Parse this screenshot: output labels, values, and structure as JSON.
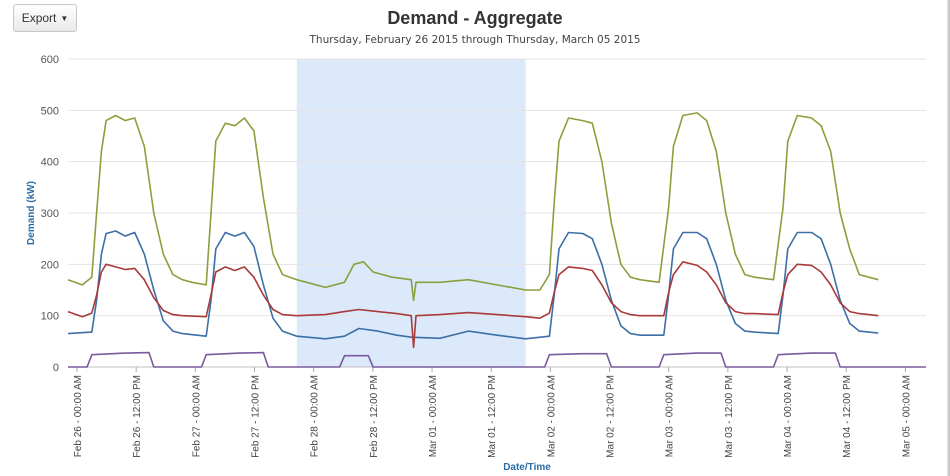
{
  "toolbar": {
    "export_label": "Export",
    "export_icon": "caret-down-icon"
  },
  "chart_data": {
    "type": "line",
    "title": "Demand - Aggregate",
    "subtitle": "Thursday, February 26 2015 through Thursday, March 05 2015",
    "xlabel": "Date/Time",
    "ylabel": "Demand (kW)",
    "ylim": [
      0,
      600
    ],
    "yticks": [
      0,
      100,
      200,
      300,
      400,
      500,
      600
    ],
    "xlim": [
      "2015-02-26 00:00",
      "2015-03-05 12:00"
    ],
    "xticks": [
      "Feb 26 - 00:00 AM",
      "Feb 26 - 12:00 PM",
      "Feb 27 - 00:00 AM",
      "Feb 27 - 12:00 PM",
      "Feb 28 - 00:00 AM",
      "Feb 28 - 12:00 PM",
      "Mar 01 - 00:00 AM",
      "Mar 01 - 12:00 PM",
      "Mar 02 - 00:00 AM",
      "Mar 02 - 12:00 PM",
      "Mar 03 - 00:00 AM",
      "Mar 03 - 12:00 PM",
      "Mar 04 - 00:00 AM",
      "Mar 04 - 12:00 PM",
      "Mar 05 - 00:00 AM"
    ],
    "grid": "horizontal",
    "legend": "none",
    "weekend_band": {
      "from": "2015-02-28 00:00",
      "to": "2015-03-02 00:00",
      "color": "#dbe9fb"
    },
    "series": [
      {
        "color": "#8aa03c",
        "points": [
          [
            "2015-02-26 00:00",
            170
          ],
          [
            "2015-02-26 03:00",
            160
          ],
          [
            "2015-02-26 05:00",
            175
          ],
          [
            "2015-02-26 06:00",
            300
          ],
          [
            "2015-02-26 07:00",
            420
          ],
          [
            "2015-02-26 08:00",
            480
          ],
          [
            "2015-02-26 10:00",
            490
          ],
          [
            "2015-02-26 12:00",
            480
          ],
          [
            "2015-02-26 14:00",
            485
          ],
          [
            "2015-02-26 16:00",
            430
          ],
          [
            "2015-02-26 18:00",
            300
          ],
          [
            "2015-02-26 20:00",
            220
          ],
          [
            "2015-02-26 22:00",
            180
          ],
          [
            "2015-02-27 00:00",
            170
          ],
          [
            "2015-02-27 02:00",
            165
          ],
          [
            "2015-02-27 05:00",
            160
          ],
          [
            "2015-02-27 06:00",
            300
          ],
          [
            "2015-02-27 07:00",
            440
          ],
          [
            "2015-02-27 09:00",
            475
          ],
          [
            "2015-02-27 11:00",
            470
          ],
          [
            "2015-02-27 13:00",
            485
          ],
          [
            "2015-02-27 15:00",
            460
          ],
          [
            "2015-02-27 17:00",
            330
          ],
          [
            "2015-02-27 19:00",
            220
          ],
          [
            "2015-02-27 21:00",
            180
          ],
          [
            "2015-02-28 00:00",
            170
          ],
          [
            "2015-02-28 06:00",
            155
          ],
          [
            "2015-02-28 10:00",
            165
          ],
          [
            "2015-02-28 12:00",
            200
          ],
          [
            "2015-02-28 14:00",
            205
          ],
          [
            "2015-02-28 16:00",
            185
          ],
          [
            "2015-02-28 20:00",
            175
          ],
          [
            "2015-03-01 00:00",
            170
          ],
          [
            "2015-03-01 00:30",
            130
          ],
          [
            "2015-03-01 01:00",
            165
          ],
          [
            "2015-03-01 06:00",
            165
          ],
          [
            "2015-03-01 12:00",
            170
          ],
          [
            "2015-03-01 18:00",
            160
          ],
          [
            "2015-03-02 00:00",
            150
          ],
          [
            "2015-03-02 03:00",
            150
          ],
          [
            "2015-03-02 05:00",
            180
          ],
          [
            "2015-03-02 06:00",
            320
          ],
          [
            "2015-03-02 07:00",
            440
          ],
          [
            "2015-03-02 09:00",
            485
          ],
          [
            "2015-03-02 12:00",
            480
          ],
          [
            "2015-03-02 14:00",
            475
          ],
          [
            "2015-03-02 16:00",
            400
          ],
          [
            "2015-03-02 18:00",
            280
          ],
          [
            "2015-03-02 20:00",
            200
          ],
          [
            "2015-03-02 22:00",
            175
          ],
          [
            "2015-03-03 00:00",
            170
          ],
          [
            "2015-03-03 04:00",
            165
          ],
          [
            "2015-03-03 06:00",
            310
          ],
          [
            "2015-03-03 07:00",
            430
          ],
          [
            "2015-03-03 09:00",
            490
          ],
          [
            "2015-03-03 12:00",
            495
          ],
          [
            "2015-03-03 14:00",
            480
          ],
          [
            "2015-03-03 16:00",
            420
          ],
          [
            "2015-03-03 18:00",
            300
          ],
          [
            "2015-03-03 20:00",
            220
          ],
          [
            "2015-03-03 22:00",
            180
          ],
          [
            "2015-03-04 00:00",
            175
          ],
          [
            "2015-03-04 04:00",
            170
          ],
          [
            "2015-03-04 06:00",
            310
          ],
          [
            "2015-03-04 07:00",
            440
          ],
          [
            "2015-03-04 09:00",
            490
          ],
          [
            "2015-03-04 12:00",
            485
          ],
          [
            "2015-03-04 14:00",
            470
          ],
          [
            "2015-03-04 16:00",
            420
          ],
          [
            "2015-03-04 18:00",
            300
          ],
          [
            "2015-03-04 20:00",
            230
          ],
          [
            "2015-03-04 22:00",
            180
          ],
          [
            "2015-03-05 00:00",
            175
          ],
          [
            "2015-03-05 02:00",
            170
          ]
        ]
      },
      {
        "color": "#3c6fa6",
        "points": [
          [
            "2015-02-26 00:00",
            65
          ],
          [
            "2015-02-26 05:00",
            68
          ],
          [
            "2015-02-26 06:00",
            130
          ],
          [
            "2015-02-26 07:00",
            220
          ],
          [
            "2015-02-26 08:00",
            260
          ],
          [
            "2015-02-26 10:00",
            265
          ],
          [
            "2015-02-26 12:00",
            255
          ],
          [
            "2015-02-26 14:00",
            262
          ],
          [
            "2015-02-26 16:00",
            220
          ],
          [
            "2015-02-26 18:00",
            150
          ],
          [
            "2015-02-26 20:00",
            90
          ],
          [
            "2015-02-26 22:00",
            70
          ],
          [
            "2015-02-27 00:00",
            65
          ],
          [
            "2015-02-27 05:00",
            60
          ],
          [
            "2015-02-27 06:00",
            130
          ],
          [
            "2015-02-27 07:00",
            230
          ],
          [
            "2015-02-27 09:00",
            262
          ],
          [
            "2015-02-27 11:00",
            255
          ],
          [
            "2015-02-27 13:00",
            262
          ],
          [
            "2015-02-27 15:00",
            235
          ],
          [
            "2015-02-27 17:00",
            160
          ],
          [
            "2015-02-27 19:00",
            95
          ],
          [
            "2015-02-27 21:00",
            70
          ],
          [
            "2015-02-28 00:00",
            60
          ],
          [
            "2015-02-28 06:00",
            55
          ],
          [
            "2015-02-28 10:00",
            60
          ],
          [
            "2015-02-28 13:00",
            75
          ],
          [
            "2015-02-28 17:00",
            70
          ],
          [
            "2015-02-28 21:00",
            62
          ],
          [
            "2015-03-01 00:00",
            58
          ],
          [
            "2015-03-01 06:00",
            56
          ],
          [
            "2015-03-01 12:00",
            70
          ],
          [
            "2015-03-01 18:00",
            62
          ],
          [
            "2015-03-02 00:00",
            55
          ],
          [
            "2015-03-02 05:00",
            60
          ],
          [
            "2015-03-02 06:00",
            140
          ],
          [
            "2015-03-02 07:00",
            230
          ],
          [
            "2015-03-02 09:00",
            262
          ],
          [
            "2015-03-02 12:00",
            260
          ],
          [
            "2015-03-02 14:00",
            250
          ],
          [
            "2015-03-02 16:00",
            200
          ],
          [
            "2015-03-02 18:00",
            130
          ],
          [
            "2015-03-02 20:00",
            80
          ],
          [
            "2015-03-02 22:00",
            65
          ],
          [
            "2015-03-03 00:00",
            62
          ],
          [
            "2015-03-03 05:00",
            62
          ],
          [
            "2015-03-03 06:00",
            140
          ],
          [
            "2015-03-03 07:00",
            230
          ],
          [
            "2015-03-03 09:00",
            262
          ],
          [
            "2015-03-03 12:00",
            262
          ],
          [
            "2015-03-03 14:00",
            250
          ],
          [
            "2015-03-03 16:00",
            200
          ],
          [
            "2015-03-03 18:00",
            130
          ],
          [
            "2015-03-03 20:00",
            85
          ],
          [
            "2015-03-03 22:00",
            70
          ],
          [
            "2015-03-04 00:00",
            68
          ],
          [
            "2015-03-04 05:00",
            65
          ],
          [
            "2015-03-04 06:00",
            140
          ],
          [
            "2015-03-04 07:00",
            230
          ],
          [
            "2015-03-04 09:00",
            262
          ],
          [
            "2015-03-04 12:00",
            262
          ],
          [
            "2015-03-04 14:00",
            250
          ],
          [
            "2015-03-04 16:00",
            200
          ],
          [
            "2015-03-04 18:00",
            130
          ],
          [
            "2015-03-04 20:00",
            85
          ],
          [
            "2015-03-04 22:00",
            70
          ],
          [
            "2015-03-05 00:00",
            68
          ],
          [
            "2015-03-05 02:00",
            66
          ]
        ]
      },
      {
        "color": "#a83a3a",
        "points": [
          [
            "2015-02-26 00:00",
            108
          ],
          [
            "2015-02-26 03:00",
            98
          ],
          [
            "2015-02-26 05:00",
            105
          ],
          [
            "2015-02-26 06:00",
            140
          ],
          [
            "2015-02-26 07:00",
            185
          ],
          [
            "2015-02-26 08:00",
            200
          ],
          [
            "2015-02-26 10:00",
            195
          ],
          [
            "2015-02-26 12:00",
            190
          ],
          [
            "2015-02-26 14:00",
            192
          ],
          [
            "2015-02-26 16:00",
            170
          ],
          [
            "2015-02-26 18:00",
            135
          ],
          [
            "2015-02-26 20:00",
            110
          ],
          [
            "2015-02-26 22:00",
            102
          ],
          [
            "2015-02-27 00:00",
            100
          ],
          [
            "2015-02-27 05:00",
            98
          ],
          [
            "2015-02-27 06:00",
            140
          ],
          [
            "2015-02-27 07:00",
            185
          ],
          [
            "2015-02-27 09:00",
            195
          ],
          [
            "2015-02-27 11:00",
            188
          ],
          [
            "2015-02-27 13:00",
            195
          ],
          [
            "2015-02-27 15:00",
            175
          ],
          [
            "2015-02-27 17:00",
            140
          ],
          [
            "2015-02-27 19:00",
            112
          ],
          [
            "2015-02-27 21:00",
            102
          ],
          [
            "2015-02-28 00:00",
            100
          ],
          [
            "2015-02-28 06:00",
            102
          ],
          [
            "2015-02-28 10:00",
            108
          ],
          [
            "2015-02-28 13:00",
            112
          ],
          [
            "2015-02-28 17:00",
            108
          ],
          [
            "2015-02-28 21:00",
            104
          ],
          [
            "2015-03-01 00:00",
            100
          ],
          [
            "2015-03-01 00:30",
            38
          ],
          [
            "2015-03-01 01:00",
            100
          ],
          [
            "2015-03-01 06:00",
            102
          ],
          [
            "2015-03-01 12:00",
            106
          ],
          [
            "2015-03-01 18:00",
            102
          ],
          [
            "2015-03-02 00:00",
            98
          ],
          [
            "2015-03-02 03:00",
            95
          ],
          [
            "2015-03-02 05:00",
            105
          ],
          [
            "2015-03-02 06:00",
            145
          ],
          [
            "2015-03-02 07:00",
            180
          ],
          [
            "2015-03-02 09:00",
            195
          ],
          [
            "2015-03-02 12:00",
            192
          ],
          [
            "2015-03-02 14:00",
            188
          ],
          [
            "2015-03-02 16:00",
            160
          ],
          [
            "2015-03-02 18:00",
            125
          ],
          [
            "2015-03-02 20:00",
            108
          ],
          [
            "2015-03-02 22:00",
            102
          ],
          [
            "2015-03-03 00:00",
            100
          ],
          [
            "2015-03-03 05:00",
            100
          ],
          [
            "2015-03-03 06:00",
            145
          ],
          [
            "2015-03-03 07:00",
            180
          ],
          [
            "2015-03-03 09:00",
            205
          ],
          [
            "2015-03-03 12:00",
            198
          ],
          [
            "2015-03-03 14:00",
            185
          ],
          [
            "2015-03-03 16:00",
            160
          ],
          [
            "2015-03-03 18:00",
            125
          ],
          [
            "2015-03-03 20:00",
            108
          ],
          [
            "2015-03-03 22:00",
            104
          ],
          [
            "2015-03-04 00:00",
            104
          ],
          [
            "2015-03-04 05:00",
            102
          ],
          [
            "2015-03-04 06:00",
            145
          ],
          [
            "2015-03-04 07:00",
            180
          ],
          [
            "2015-03-04 09:00",
            200
          ],
          [
            "2015-03-04 12:00",
            198
          ],
          [
            "2015-03-04 14:00",
            185
          ],
          [
            "2015-03-04 16:00",
            160
          ],
          [
            "2015-03-04 18:00",
            125
          ],
          [
            "2015-03-04 20:00",
            108
          ],
          [
            "2015-03-04 22:00",
            104
          ],
          [
            "2015-03-05 00:00",
            102
          ],
          [
            "2015-03-05 02:00",
            100
          ]
        ]
      },
      {
        "color": "#7b5a9e",
        "points": [
          [
            "2015-02-26 00:00",
            0
          ],
          [
            "2015-02-26 04:00",
            0
          ],
          [
            "2015-02-26 05:00",
            24
          ],
          [
            "2015-02-26 12:00",
            27
          ],
          [
            "2015-02-26 17:00",
            28
          ],
          [
            "2015-02-26 18:00",
            0
          ],
          [
            "2015-02-27 04:00",
            0
          ],
          [
            "2015-02-27 05:00",
            24
          ],
          [
            "2015-02-27 12:00",
            27
          ],
          [
            "2015-02-27 17:00",
            28
          ],
          [
            "2015-02-27 18:00",
            0
          ],
          [
            "2015-02-28 09:00",
            0
          ],
          [
            "2015-02-28 10:00",
            22
          ],
          [
            "2015-02-28 15:00",
            22
          ],
          [
            "2015-02-28 16:00",
            0
          ],
          [
            "2015-03-02 04:00",
            0
          ],
          [
            "2015-03-02 05:00",
            24
          ],
          [
            "2015-03-02 12:00",
            26
          ],
          [
            "2015-03-02 17:00",
            26
          ],
          [
            "2015-03-02 18:00",
            0
          ],
          [
            "2015-03-03 04:00",
            0
          ],
          [
            "2015-03-03 05:00",
            24
          ],
          [
            "2015-03-03 12:00",
            27
          ],
          [
            "2015-03-03 17:00",
            27
          ],
          [
            "2015-03-03 18:00",
            0
          ],
          [
            "2015-03-04 04:00",
            0
          ],
          [
            "2015-03-04 05:00",
            24
          ],
          [
            "2015-03-04 12:00",
            27
          ],
          [
            "2015-03-04 17:00",
            27
          ],
          [
            "2015-03-04 18:00",
            0
          ],
          [
            "2015-03-05 12:00",
            0
          ]
        ]
      }
    ]
  }
}
